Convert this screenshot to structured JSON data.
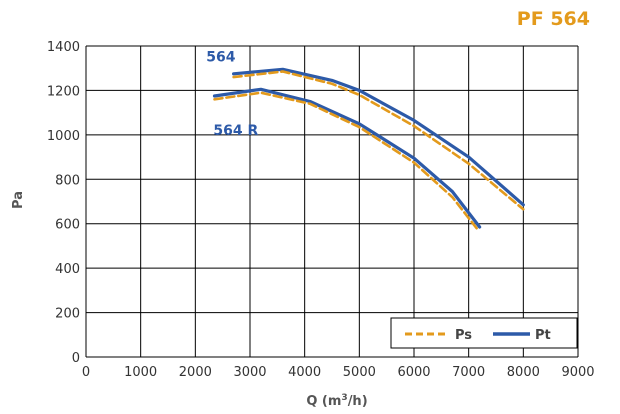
{
  "brand": {
    "prefix": "PF",
    "number": "564"
  },
  "colors": {
    "ps": "#e39a1c",
    "pt": "#2d5aa8",
    "grid": "#000000"
  },
  "chart_data": {
    "type": "line",
    "xlabel_prefix": "Q (m",
    "xlabel_sup": "3",
    "xlabel_suffix": "/h)",
    "ylabel": "Pa",
    "xlim": [
      0,
      9000
    ],
    "ylim": [
      0,
      1400
    ],
    "xticks": [
      0,
      1000,
      2000,
      3000,
      4000,
      5000,
      6000,
      7000,
      8000,
      9000
    ],
    "yticks": [
      0,
      200,
      400,
      600,
      800,
      1000,
      1200,
      1400
    ],
    "grid": true,
    "legend": {
      "placement": "bottom-right",
      "entries": [
        "Ps",
        "Pt"
      ]
    },
    "annotations": [
      {
        "text": "564",
        "x": 2200,
        "y": 1330
      },
      {
        "text": "564 R",
        "x": 2330,
        "y": 1000
      }
    ],
    "series": [
      {
        "name": "Ps",
        "model": "564",
        "style": "dashed",
        "points": [
          [
            2700,
            1260
          ],
          [
            3600,
            1285
          ],
          [
            4500,
            1230
          ],
          [
            5000,
            1180
          ],
          [
            6000,
            1040
          ],
          [
            7000,
            870
          ],
          [
            8000,
            665
          ]
        ]
      },
      {
        "name": "Pt",
        "model": "564",
        "style": "solid",
        "points": [
          [
            2700,
            1275
          ],
          [
            3600,
            1295
          ],
          [
            4500,
            1245
          ],
          [
            5000,
            1200
          ],
          [
            6000,
            1065
          ],
          [
            7000,
            900
          ],
          [
            8000,
            685
          ]
        ]
      },
      {
        "name": "Ps",
        "model": "564 R",
        "style": "dashed",
        "points": [
          [
            2350,
            1160
          ],
          [
            3200,
            1190
          ],
          [
            4100,
            1140
          ],
          [
            5000,
            1035
          ],
          [
            6000,
            875
          ],
          [
            6700,
            720
          ],
          [
            7150,
            578
          ]
        ]
      },
      {
        "name": "Pt",
        "model": "564 R",
        "style": "solid",
        "points": [
          [
            2350,
            1175
          ],
          [
            3200,
            1205
          ],
          [
            4100,
            1150
          ],
          [
            5000,
            1050
          ],
          [
            6000,
            895
          ],
          [
            6700,
            745
          ],
          [
            7200,
            585
          ]
        ]
      }
    ]
  }
}
